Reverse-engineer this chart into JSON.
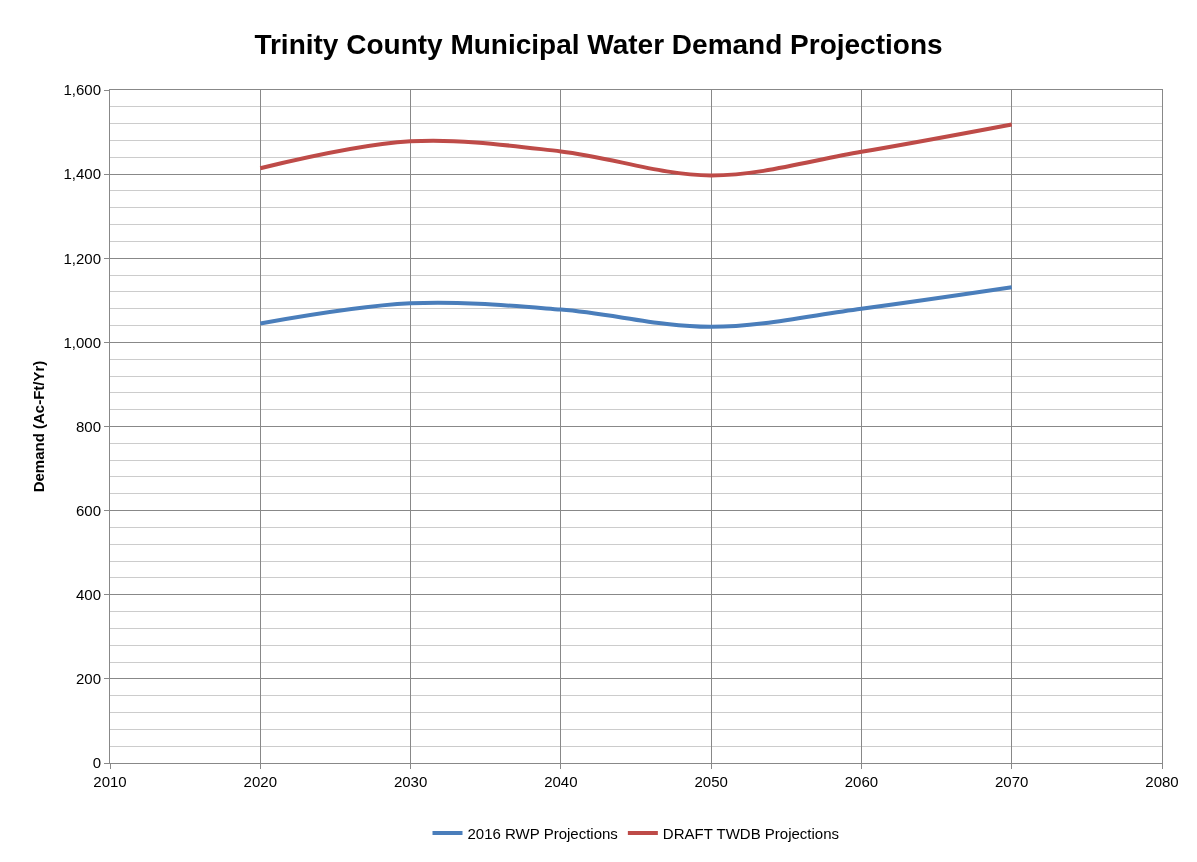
{
  "chart_data": {
    "type": "line",
    "title": "Trinity County Municipal Water Demand Projections",
    "ylabel": "Demand (Ac-Ft/Yr)",
    "x": [
      2020,
      2030,
      2040,
      2050,
      2060,
      2070
    ],
    "series": [
      {
        "name": "2016 RWP Projections",
        "color": "#4a7ebb",
        "values": [
          1045,
          1093,
          1078,
          1037,
          1080,
          1131
        ]
      },
      {
        "name": "DRAFT TWDB Projections",
        "color": "#be4b48",
        "values": [
          1414,
          1478,
          1454,
          1397,
          1453,
          1518
        ]
      }
    ],
    "xlim": [
      2010,
      2080
    ],
    "xticks": [
      2010,
      2020,
      2030,
      2040,
      2050,
      2060,
      2070,
      2080
    ],
    "ylim": [
      0,
      1600
    ],
    "yticks": [
      {
        "value": 0,
        "label": "0"
      },
      {
        "value": 200,
        "label": "200"
      },
      {
        "value": 400,
        "label": "400"
      },
      {
        "value": 600,
        "label": "600"
      },
      {
        "value": 800,
        "label": "800"
      },
      {
        "value": 1000,
        "label": "1,000"
      },
      {
        "value": 1200,
        "label": "1,200"
      },
      {
        "value": 1400,
        "label": "1,400"
      },
      {
        "value": 1600,
        "label": "1,600"
      }
    ],
    "grid": true,
    "legend": "bottom",
    "marker": "none",
    "line_style": "solid"
  }
}
